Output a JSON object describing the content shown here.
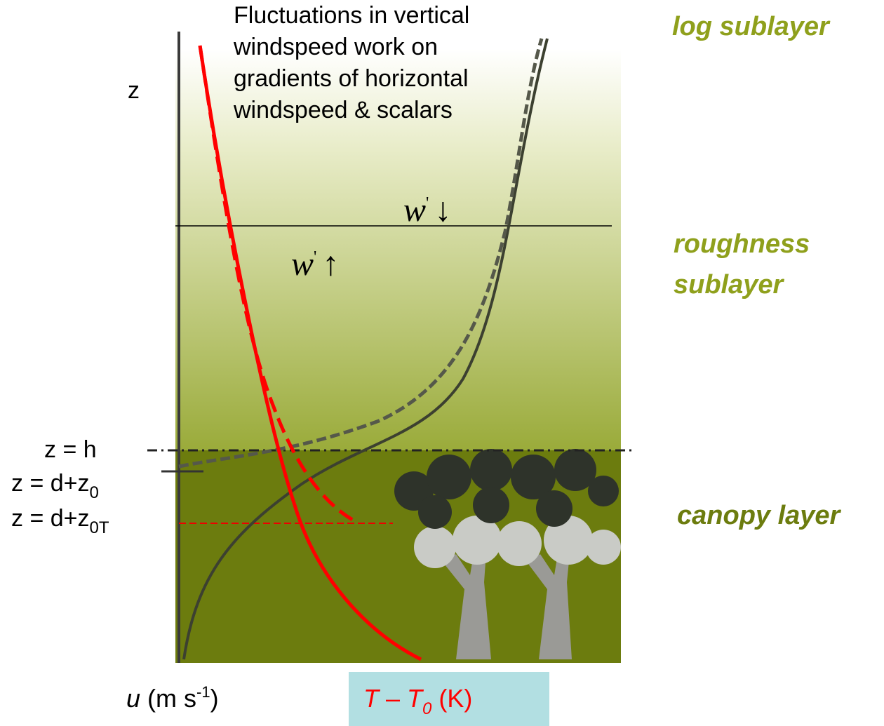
{
  "annotation": {
    "lines": [
      "Fluctuations in vertical",
      "windspeed work on",
      "gradients of horizontal",
      "windspeed & scalars"
    ]
  },
  "layers": {
    "log": "log sublayer",
    "roughness": [
      "roughness",
      "sublayer"
    ],
    "canopy": "canopy layer"
  },
  "axis": {
    "z": "z",
    "heights": [
      {
        "text": "z = h"
      },
      {
        "text": "z = d+z",
        "sub": "0"
      },
      {
        "text": "z = d+z",
        "sub": "0T"
      }
    ],
    "u": {
      "symbol": "u",
      "unit": " (m s",
      "sup": "-1",
      "close": ")"
    },
    "t": {
      "a": "T",
      "dash": " – ",
      "b": "T",
      "sub": "0",
      "unit": " (K)"
    }
  },
  "flux": {
    "down": {
      "symbol": "w",
      "prime": "'",
      "arrow": "↓"
    },
    "up": {
      "symbol": "w",
      "prime": "'",
      "arrow": "↑"
    }
  }
}
